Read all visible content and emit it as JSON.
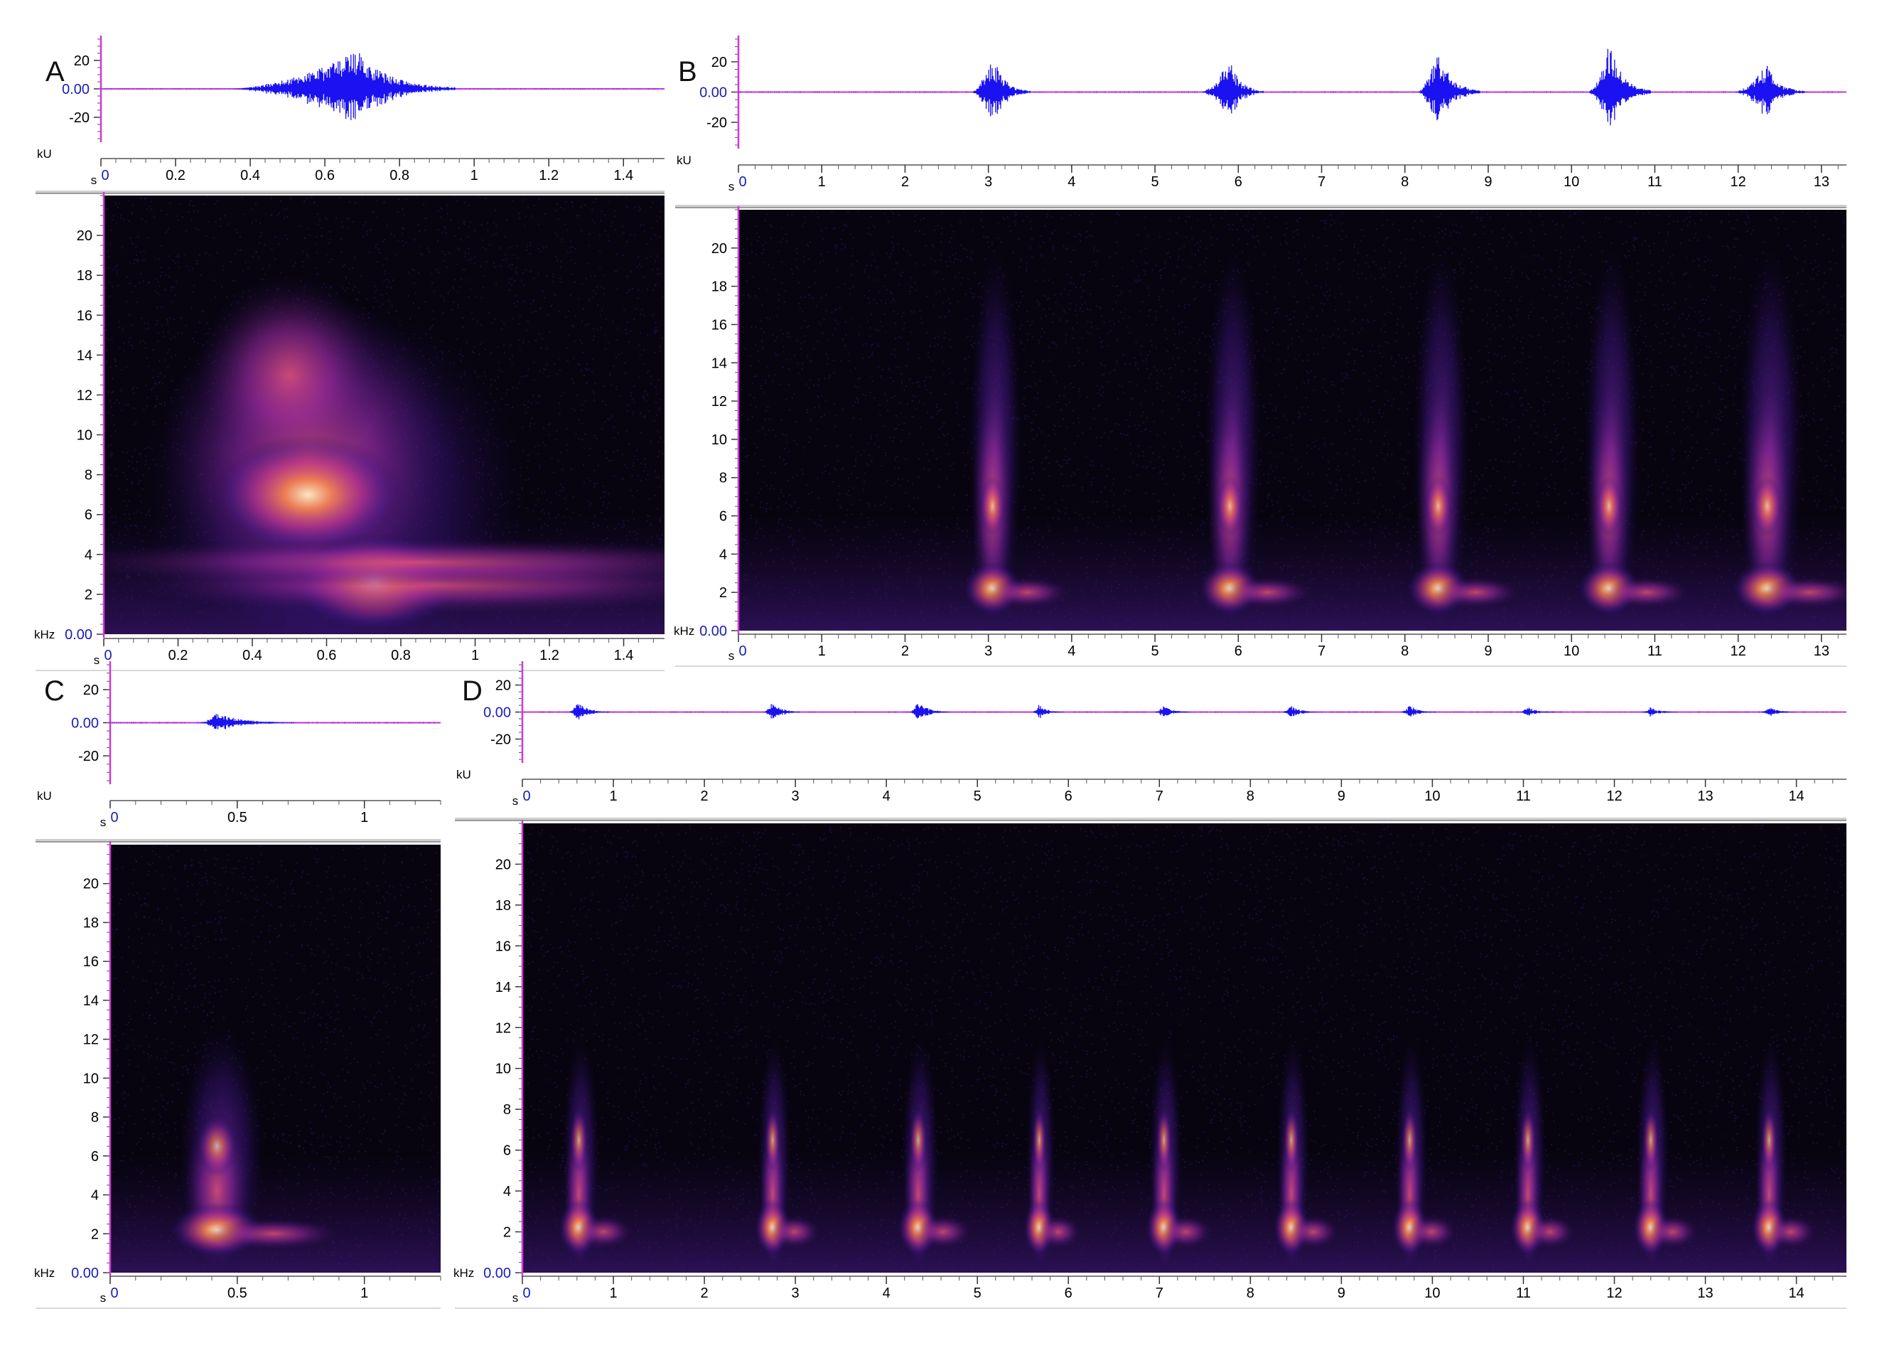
{
  "figure": {
    "panels": [
      {
        "id": "A",
        "letter": "A",
        "waveform": {
          "unit_label": "kU",
          "yticks": [
            "20",
            "0.00",
            "-20"
          ],
          "ytick_values": [
            20,
            0,
            -20
          ],
          "ylim": [
            -35,
            35
          ],
          "time_unit": "s",
          "xticks": [
            "0",
            "0.2",
            "0.4",
            "0.6",
            "0.8",
            "1",
            "1.2",
            "1.4"
          ],
          "xtick_values": [
            0,
            0.2,
            0.4,
            0.6,
            0.8,
            1.0,
            1.2,
            1.4
          ],
          "xlim": [
            0,
            1.51
          ],
          "events": [
            {
              "t": 0.35,
              "end": 0.95,
              "peak_t": 0.69,
              "amp": 27
            }
          ]
        },
        "spectrogram": {
          "unit_label": "kHz",
          "yticks": [
            "20",
            "18",
            "16",
            "14",
            "12",
            "10",
            "8",
            "6",
            "4",
            "2",
            "0.00"
          ],
          "ytick_values": [
            20,
            18,
            16,
            14,
            12,
            10,
            8,
            6,
            4,
            2,
            0
          ],
          "ylim": [
            0,
            22
          ],
          "time_unit": "s",
          "xticks": [
            "0",
            "0.2",
            "0.4",
            "0.6",
            "0.8",
            "1",
            "1.2",
            "1.4"
          ],
          "xtick_values": [
            0,
            0.2,
            0.4,
            0.6,
            0.8,
            1.0,
            1.2,
            1.4
          ],
          "xlim": [
            0,
            1.51
          ]
        }
      },
      {
        "id": "B",
        "letter": "B",
        "waveform": {
          "unit_label": "kU",
          "yticks": [
            "20",
            "0.00",
            "-20"
          ],
          "ytick_values": [
            20,
            0,
            -20
          ],
          "ylim": [
            -35,
            35
          ],
          "time_unit": "s",
          "xticks": [
            "0",
            "1",
            "2",
            "3",
            "4",
            "5",
            "6",
            "7",
            "8",
            "9",
            "10",
            "11",
            "12",
            "13"
          ],
          "xtick_values": [
            0,
            1,
            2,
            3,
            4,
            5,
            6,
            7,
            8,
            9,
            10,
            11,
            12,
            13
          ],
          "xlim": [
            0,
            13.3
          ],
          "events": [
            {
              "t": 2.8,
              "peak_t": 3.05,
              "end": 3.5,
              "amp": 25
            },
            {
              "t": 5.55,
              "peak_t": 5.9,
              "end": 6.3,
              "amp": 22
            },
            {
              "t": 8.15,
              "peak_t": 8.4,
              "end": 8.9,
              "amp": 28
            },
            {
              "t": 10.2,
              "peak_t": 10.45,
              "end": 10.95,
              "amp": 33
            },
            {
              "t": 11.95,
              "peak_t": 12.35,
              "end": 12.8,
              "amp": 19
            }
          ]
        },
        "spectrogram": {
          "unit_label": "kHz",
          "yticks": [
            "20",
            "18",
            "16",
            "14",
            "12",
            "10",
            "8",
            "6",
            "4",
            "2",
            "0.00"
          ],
          "ytick_values": [
            20,
            18,
            16,
            14,
            12,
            10,
            8,
            6,
            4,
            2,
            0
          ],
          "ylim": [
            0,
            22
          ],
          "time_unit": "s",
          "xticks": [
            "0",
            "1",
            "2",
            "3",
            "4",
            "5",
            "6",
            "7",
            "8",
            "9",
            "10",
            "11",
            "12",
            "13"
          ],
          "xtick_values": [
            0,
            1,
            2,
            3,
            4,
            5,
            6,
            7,
            8,
            9,
            10,
            11,
            12,
            13
          ],
          "xlim": [
            0,
            13.3
          ]
        }
      },
      {
        "id": "C",
        "letter": "C",
        "waveform": {
          "unit_label": "kU",
          "yticks": [
            "20",
            "0.00",
            "-20"
          ],
          "ytick_values": [
            20,
            0,
            -20
          ],
          "ylim": [
            -35,
            35
          ],
          "time_unit": "s",
          "xticks": [
            "0",
            "0.5",
            "1"
          ],
          "xtick_values": [
            0,
            0.5,
            1
          ],
          "xlim": [
            0,
            1.3
          ],
          "events": [
            {
              "t": 0.35,
              "peak_t": 0.42,
              "end": 0.72,
              "amp": 6
            }
          ]
        },
        "spectrogram": {
          "unit_label": "kHz",
          "yticks": [
            "20",
            "18",
            "16",
            "14",
            "12",
            "10",
            "8",
            "6",
            "4",
            "2",
            "0.00"
          ],
          "ytick_values": [
            20,
            18,
            16,
            14,
            12,
            10,
            8,
            6,
            4,
            2,
            0
          ],
          "ylim": [
            0,
            22
          ],
          "time_unit": "s",
          "xticks": [
            "0",
            "0.5",
            "1"
          ],
          "xtick_values": [
            0,
            0.5,
            1
          ],
          "xlim": [
            0,
            1.3
          ]
        }
      },
      {
        "id": "D",
        "letter": "D",
        "waveform": {
          "unit_label": "kU",
          "yticks": [
            "20",
            "0.00",
            "-20"
          ],
          "ytick_values": [
            20,
            0,
            -20
          ],
          "ylim": [
            -35,
            35
          ],
          "time_unit": "s",
          "xticks": [
            "0",
            "1",
            "2",
            "3",
            "4",
            "5",
            "6",
            "7",
            "8",
            "9",
            "10",
            "11",
            "12",
            "13",
            "14"
          ],
          "xtick_values": [
            0,
            1,
            2,
            3,
            4,
            5,
            6,
            7,
            8,
            9,
            10,
            11,
            12,
            13,
            14
          ],
          "xlim": [
            0,
            14.55
          ],
          "events": [
            {
              "t": 0.5,
              "peak_t": 0.62,
              "end": 0.95,
              "amp": 8
            },
            {
              "t": 2.65,
              "peak_t": 2.75,
              "end": 3.05,
              "amp": 8
            },
            {
              "t": 4.25,
              "peak_t": 4.35,
              "end": 4.7,
              "amp": 8
            },
            {
              "t": 5.6,
              "peak_t": 5.68,
              "end": 5.95,
              "amp": 6
            },
            {
              "t": 6.95,
              "peak_t": 7.05,
              "end": 7.35,
              "amp": 5
            },
            {
              "t": 8.35,
              "peak_t": 8.45,
              "end": 8.75,
              "amp": 5
            },
            {
              "t": 9.65,
              "peak_t": 9.75,
              "end": 10.05,
              "amp": 5
            },
            {
              "t": 10.95,
              "peak_t": 11.05,
              "end": 11.35,
              "amp": 4
            },
            {
              "t": 12.3,
              "peak_t": 12.4,
              "end": 12.7,
              "amp": 4
            },
            {
              "t": 13.6,
              "peak_t": 13.7,
              "end": 14.0,
              "amp": 4
            }
          ]
        },
        "spectrogram": {
          "unit_label": "kHz",
          "yticks": [
            "20",
            "18",
            "16",
            "14",
            "12",
            "10",
            "8",
            "6",
            "4",
            "2",
            "0.00"
          ],
          "ytick_values": [
            20,
            18,
            16,
            14,
            12,
            10,
            8,
            6,
            4,
            2,
            0
          ],
          "ylim": [
            0,
            22
          ],
          "time_unit": "s",
          "xticks": [
            "0",
            "1",
            "2",
            "3",
            "4",
            "5",
            "6",
            "7",
            "8",
            "9",
            "10",
            "11",
            "12",
            "13",
            "14"
          ],
          "xtick_values": [
            0,
            1,
            2,
            3,
            4,
            5,
            6,
            7,
            8,
            9,
            10,
            11,
            12,
            13,
            14
          ],
          "xlim": [
            0,
            14.55
          ]
        }
      }
    ]
  },
  "colors": {
    "waveform": "#1a12f0",
    "axis_line": "#d038d8",
    "tick_text": "#000000",
    "zero_label": "#1a1ab8",
    "spectrogram_bg": "#07040f"
  },
  "chart_data": [
    {
      "type": "line",
      "panel": "A",
      "kind": "waveform",
      "xlim": [
        0,
        1.51
      ],
      "ylim": [
        -35,
        35
      ],
      "xlabel": "s",
      "ylabel": "kU",
      "series": [
        {
          "values": [
            {
              "x": 0.0,
              "y": 0
            },
            {
              "x": 0.35,
              "y": 3
            },
            {
              "x": 0.5,
              "y": 8
            },
            {
              "x": 0.69,
              "y": 27
            },
            {
              "x": 0.8,
              "y": 10
            },
            {
              "x": 0.95,
              "y": 2
            },
            {
              "x": 1.51,
              "y": 0
            }
          ]
        }
      ]
    },
    {
      "type": "heatmap",
      "panel": "A",
      "kind": "spectrogram",
      "xlim": [
        0,
        1.51
      ],
      "ylim": [
        0,
        22
      ],
      "xlabel": "s",
      "ylabel": "kHz"
    },
    {
      "type": "line",
      "panel": "B",
      "kind": "waveform",
      "xlim": [
        0,
        13.3
      ],
      "ylim": [
        -35,
        35
      ],
      "xlabel": "s",
      "ylabel": "kU",
      "series": [
        {
          "values": [
            {
              "x": 3.05,
              "y": 25
            },
            {
              "x": 5.9,
              "y": 22
            },
            {
              "x": 8.4,
              "y": 28
            },
            {
              "x": 10.45,
              "y": 33
            },
            {
              "x": 12.35,
              "y": 19
            }
          ]
        }
      ]
    },
    {
      "type": "heatmap",
      "panel": "B",
      "kind": "spectrogram",
      "xlim": [
        0,
        13.3
      ],
      "ylim": [
        0,
        22
      ],
      "xlabel": "s",
      "ylabel": "kHz"
    },
    {
      "type": "line",
      "panel": "C",
      "kind": "waveform",
      "xlim": [
        0,
        1.3
      ],
      "ylim": [
        -35,
        35
      ],
      "xlabel": "s",
      "ylabel": "kU",
      "series": [
        {
          "values": [
            {
              "x": 0.42,
              "y": 6
            }
          ]
        }
      ]
    },
    {
      "type": "heatmap",
      "panel": "C",
      "kind": "spectrogram",
      "xlim": [
        0,
        1.3
      ],
      "ylim": [
        0,
        22
      ],
      "xlabel": "s",
      "ylabel": "kHz"
    },
    {
      "type": "line",
      "panel": "D",
      "kind": "waveform",
      "xlim": [
        0,
        14.55
      ],
      "ylim": [
        -35,
        35
      ],
      "xlabel": "s",
      "ylabel": "kU",
      "series": [
        {
          "values": [
            {
              "x": 0.62,
              "y": 8
            },
            {
              "x": 2.75,
              "y": 8
            },
            {
              "x": 4.35,
              "y": 8
            },
            {
              "x": 5.68,
              "y": 6
            },
            {
              "x": 7.05,
              "y": 5
            },
            {
              "x": 8.45,
              "y": 5
            },
            {
              "x": 9.75,
              "y": 5
            },
            {
              "x": 11.05,
              "y": 4
            },
            {
              "x": 12.4,
              "y": 4
            },
            {
              "x": 13.7,
              "y": 4
            }
          ]
        }
      ]
    },
    {
      "type": "heatmap",
      "panel": "D",
      "kind": "spectrogram",
      "xlim": [
        0,
        14.55
      ],
      "ylim": [
        0,
        22
      ],
      "xlabel": "s",
      "ylabel": "kHz"
    }
  ]
}
